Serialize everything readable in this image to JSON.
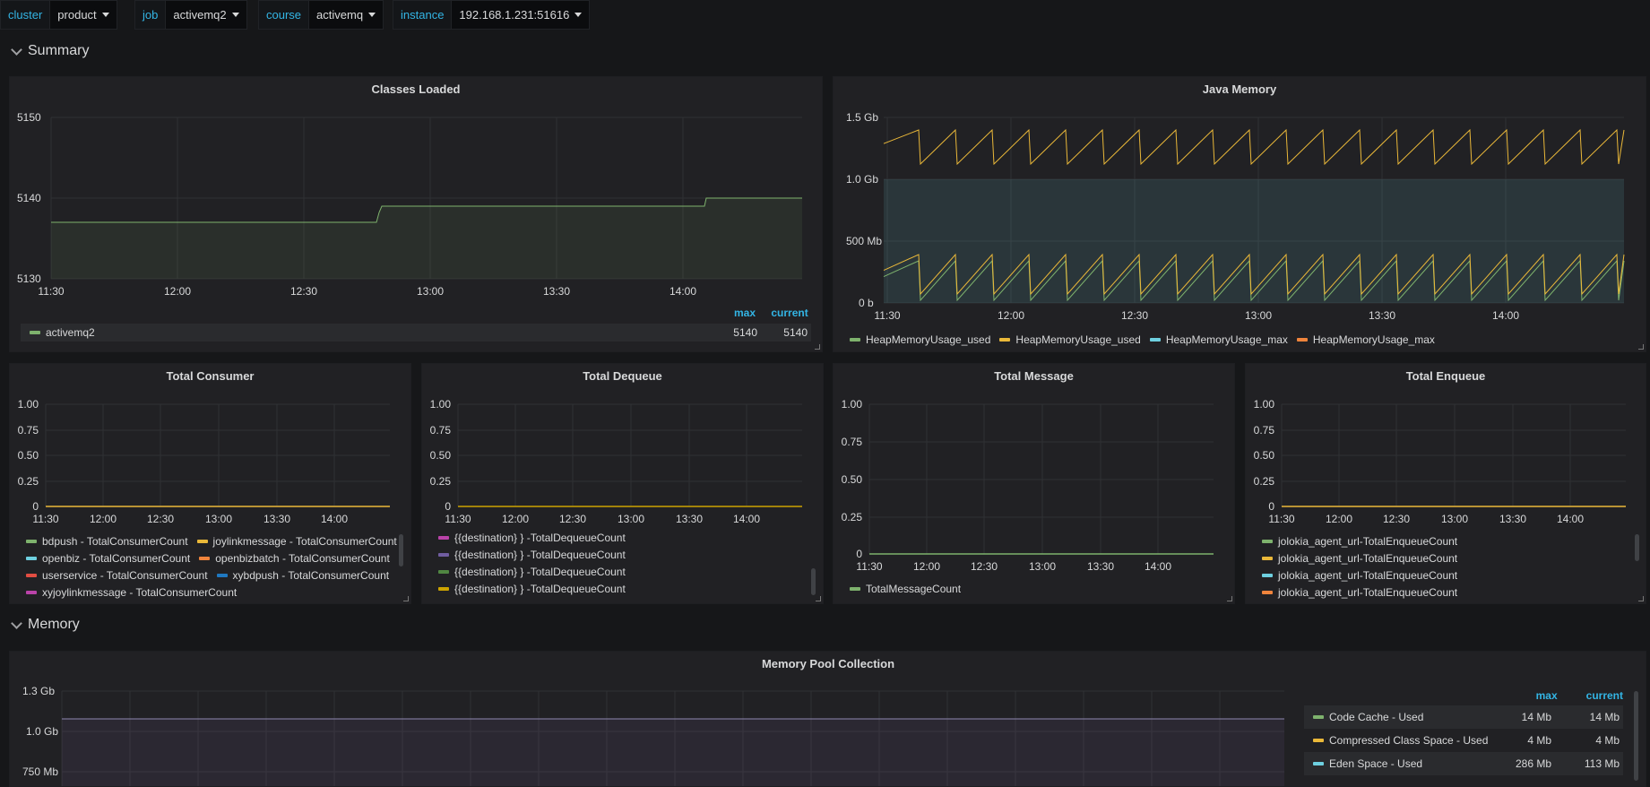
{
  "variables": [
    {
      "label": "cluster",
      "value": "product"
    },
    {
      "label": "job",
      "value": "activemq2"
    },
    {
      "label": "course",
      "value": "activemq"
    },
    {
      "label": "instance",
      "value": "192.168.1.231:51616"
    }
  ],
  "rows": {
    "summary": "Summary",
    "memory": "Memory"
  },
  "colors": {
    "green": "#7eb26d",
    "yellow": "#eab839",
    "cyan": "#6ed0e0",
    "orange": "#ef843c",
    "red": "#e24d42",
    "blue": "#1f78c1",
    "purple": "#ba43a9",
    "violet": "#705da0",
    "darkgreen": "#508642",
    "gold": "#cca300"
  },
  "panels": {
    "classes": {
      "title": "Classes Loaded",
      "yticks": [
        "5150",
        "5140",
        "5130"
      ],
      "xticks": [
        "11:30",
        "12:00",
        "12:30",
        "13:00",
        "13:30",
        "14:00"
      ],
      "legend_headers": {
        "max": "max",
        "current": "current"
      },
      "legend": [
        {
          "name": "activemq2",
          "max": "5140",
          "current": "5140",
          "color": "#7eb26d"
        }
      ]
    },
    "java": {
      "title": "Java Memory",
      "yticks": [
        "1.5 Gb",
        "1.0 Gb",
        "500 Mb",
        "0 b"
      ],
      "xticks": [
        "11:30",
        "12:00",
        "12:30",
        "13:00",
        "13:30",
        "14:00"
      ],
      "legend": [
        {
          "name": "HeapMemoryUsage_used",
          "color": "#7eb26d"
        },
        {
          "name": "HeapMemoryUsage_used",
          "color": "#eab839"
        },
        {
          "name": "HeapMemoryUsage_max",
          "color": "#6ed0e0"
        },
        {
          "name": "HeapMemoryUsage_max",
          "color": "#ef843c"
        }
      ]
    },
    "consumer": {
      "title": "Total Consumer",
      "yticks": [
        "1.00",
        "0.75",
        "0.50",
        "0.25",
        "0"
      ],
      "xticks": [
        "11:30",
        "12:00",
        "12:30",
        "13:00",
        "13:30",
        "14:00"
      ],
      "legend": [
        {
          "name": "bdpush - TotalConsumerCount",
          "color": "#7eb26d"
        },
        {
          "name": "joylinkmessage - TotalConsumerCount",
          "color": "#eab839"
        },
        {
          "name": "openbiz - TotalConsumerCount",
          "color": "#6ed0e0"
        },
        {
          "name": "openbizbatch - TotalConsumerCount",
          "color": "#ef843c"
        },
        {
          "name": "userservice - TotalConsumerCount",
          "color": "#e24d42"
        },
        {
          "name": "xybdpush - TotalConsumerCount",
          "color": "#1f78c1"
        },
        {
          "name": "xyjoylinkmessage - TotalConsumerCount",
          "color": "#ba43a9"
        }
      ]
    },
    "dequeue": {
      "title": "Total Dequeue",
      "yticks": [
        "1.00",
        "0.75",
        "0.50",
        "0.25",
        "0"
      ],
      "xticks": [
        "11:30",
        "12:00",
        "12:30",
        "13:00",
        "13:30",
        "14:00"
      ],
      "legend": [
        {
          "name": "{{destination} } -TotalDequeueCount",
          "color": "#ba43a9"
        },
        {
          "name": "{{destination} } -TotalDequeueCount",
          "color": "#705da0"
        },
        {
          "name": "{{destination} } -TotalDequeueCount",
          "color": "#508642"
        },
        {
          "name": "{{destination} } -TotalDequeueCount",
          "color": "#cca300"
        }
      ]
    },
    "message": {
      "title": "Total Message",
      "yticks": [
        "1.00",
        "0.75",
        "0.50",
        "0.25",
        "0"
      ],
      "xticks": [
        "11:30",
        "12:00",
        "12:30",
        "13:00",
        "13:30",
        "14:00"
      ],
      "legend": [
        {
          "name": "TotalMessageCount",
          "color": "#7eb26d"
        }
      ]
    },
    "enqueue": {
      "title": "Total Enqueue",
      "yticks": [
        "1.00",
        "0.75",
        "0.50",
        "0.25",
        "0"
      ],
      "xticks": [
        "11:30",
        "12:00",
        "12:30",
        "13:00",
        "13:30",
        "14:00"
      ],
      "legend": [
        {
          "name": "jolokia_agent_url-TotalEnqueueCount",
          "color": "#7eb26d"
        },
        {
          "name": "jolokia_agent_url-TotalEnqueueCount",
          "color": "#eab839"
        },
        {
          "name": "jolokia_agent_url-TotalEnqueueCount",
          "color": "#6ed0e0"
        },
        {
          "name": "jolokia_agent_url-TotalEnqueueCount",
          "color": "#ef843c"
        }
      ]
    },
    "pool": {
      "title": "Memory Pool Collection",
      "yticks": [
        "1.3 Gb",
        "1.0 Gb",
        "750 Mb"
      ],
      "legend_headers": {
        "max": "max",
        "current": "current"
      },
      "legend": [
        {
          "name": "Code Cache - Used",
          "max": "14 Mb",
          "current": "14 Mb",
          "color": "#7eb26d"
        },
        {
          "name": "Compressed Class Space - Used",
          "max": "4 Mb",
          "current": "4 Mb",
          "color": "#eab839"
        },
        {
          "name": "Eden Space - Used",
          "max": "286 Mb",
          "current": "113 Mb",
          "color": "#6ed0e0"
        }
      ]
    }
  }
}
